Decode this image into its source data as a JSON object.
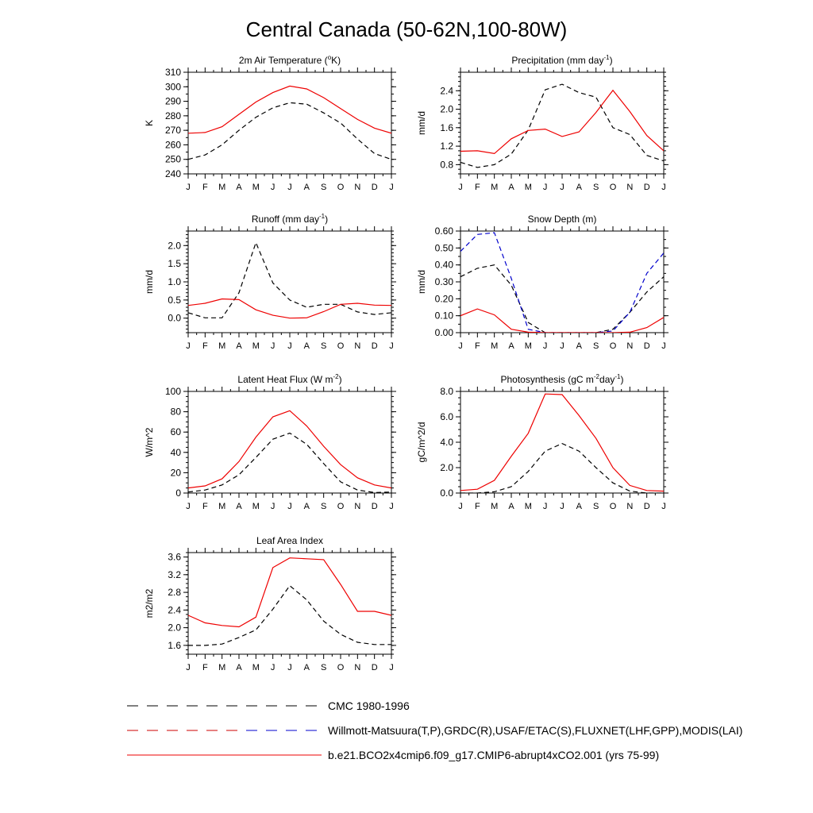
{
  "figure_title": "Central Canada (50-62N,100-80W)",
  "months": [
    "J",
    "F",
    "M",
    "A",
    "M",
    "J",
    "J",
    "A",
    "S",
    "O",
    "N",
    "D",
    "J"
  ],
  "legend": [
    {
      "label": "CMC 1980-1996",
      "color": "#000000",
      "dash": true
    },
    {
      "label": "Willmott-Matsuura(T,P),GRDC(R),USAF/ETAC(S),FLUXNET(LHF,GPP),MODIS(LAI)",
      "color": "#cc0000",
      "color2": "#0000cc",
      "dash": true
    },
    {
      "label": "b.e21.BCO2x4cmip6.f09_g17.CMIP6-abrupt4xCO2.001 (yrs 75-99)",
      "color": "#ee0000",
      "dash": false
    }
  ],
  "chart_data": [
    {
      "type": "line",
      "title_parts": [
        {
          "t": "2m Air Temperature ("
        },
        {
          "t": "o",
          "sup": true
        },
        {
          "t": "K)"
        }
      ],
      "ylabel": "K",
      "ylim": [
        240,
        310
      ],
      "yticks": [
        240,
        250,
        260,
        270,
        280,
        290,
        300,
        310
      ],
      "yticklabels": [
        "240",
        "250",
        "260",
        "270",
        "280",
        "290",
        "300",
        "310"
      ],
      "yminor": 5,
      "series": [
        {
          "name": "CMC 1980-1996",
          "color": "#000000",
          "dash": true,
          "values": [
            250,
            253,
            260,
            270,
            279,
            285.5,
            289,
            288,
            282,
            275,
            264,
            254,
            250
          ]
        },
        {
          "name": "b.e21 abrupt4xCO2",
          "color": "#ee0000",
          "dash": false,
          "values": [
            268,
            268.5,
            272.5,
            281,
            289.5,
            296,
            300.5,
            298.5,
            292.5,
            285,
            277.5,
            271.5,
            268
          ]
        }
      ]
    },
    {
      "type": "line",
      "title_parts": [
        {
          "t": "Precipitation (mm day"
        },
        {
          "t": "-1",
          "sup": true
        },
        {
          "t": ")"
        }
      ],
      "ylabel": "mm/d",
      "ylim": [
        0.6,
        2.8
      ],
      "yticks": [
        0.8,
        1.2,
        1.6,
        2.0,
        2.4
      ],
      "yticklabels": [
        "0.8",
        "1.2",
        "1.6",
        "2.0",
        "2.4"
      ],
      "yminor": 0.1,
      "series": [
        {
          "name": "Willmott-Matsuura",
          "color": "#000000",
          "dash": true,
          "values": [
            0.85,
            0.74,
            0.8,
            1.03,
            1.55,
            2.42,
            2.54,
            2.36,
            2.26,
            1.6,
            1.45,
            1.0,
            0.88
          ]
        },
        {
          "name": "b.e21 abrupt4xCO2",
          "color": "#ee0000",
          "dash": false,
          "values": [
            1.09,
            1.1,
            1.04,
            1.36,
            1.54,
            1.57,
            1.41,
            1.51,
            1.93,
            2.41,
            1.95,
            1.43,
            1.1
          ]
        }
      ]
    },
    {
      "type": "line",
      "title_parts": [
        {
          "t": "Runoff (mm day"
        },
        {
          "t": "-1",
          "sup": true
        },
        {
          "t": ")"
        }
      ],
      "ylabel": "mm/d",
      "ylim": [
        -0.4,
        2.4
      ],
      "yticks": [
        0.0,
        0.5,
        1.0,
        1.5,
        2.0
      ],
      "yticklabels": [
        "0.0",
        "0.5",
        "1.0",
        "1.5",
        "2.0"
      ],
      "yminor": 0.1,
      "series": [
        {
          "name": "GRDC",
          "color": "#000000",
          "dash": true,
          "values": [
            0.15,
            0.01,
            0.01,
            0.7,
            2.08,
            0.97,
            0.5,
            0.3,
            0.38,
            0.38,
            0.17,
            0.1,
            0.15
          ]
        },
        {
          "name": "b.e21 abrupt4xCO2",
          "color": "#ee0000",
          "dash": false,
          "values": [
            0.35,
            0.41,
            0.53,
            0.51,
            0.23,
            0.08,
            0.0,
            0.01,
            0.18,
            0.38,
            0.41,
            0.36,
            0.35
          ]
        }
      ]
    },
    {
      "type": "line",
      "title_parts": [
        {
          "t": "Snow Depth (m)"
        }
      ],
      "ylabel": "mm/d",
      "ylim": [
        0.0,
        0.6
      ],
      "yticks": [
        0.0,
        0.1,
        0.2,
        0.3,
        0.4,
        0.5,
        0.6
      ],
      "yticklabels": [
        "0.00",
        "0.10",
        "0.20",
        "0.30",
        "0.40",
        "0.50",
        "0.60"
      ],
      "yminor": 0.05,
      "series": [
        {
          "name": "CMC 1980-1996",
          "color": "#000000",
          "dash": true,
          "values": [
            0.33,
            0.38,
            0.4,
            0.28,
            0.06,
            0.0,
            0.0,
            0.0,
            0.0,
            0.02,
            0.12,
            0.24,
            0.33
          ]
        },
        {
          "name": "USAF/ETAC",
          "color": "#0000cc",
          "dash": true,
          "values": [
            0.48,
            0.58,
            0.59,
            0.32,
            0.02,
            0.0,
            0.0,
            0.0,
            0.0,
            0.01,
            0.12,
            0.35,
            0.47
          ]
        },
        {
          "name": "b.e21 abrupt4xCO2",
          "color": "#ee0000",
          "dash": false,
          "values": [
            0.1,
            0.14,
            0.105,
            0.02,
            0.003,
            0.0,
            0.0,
            0.0,
            0.0,
            0.0,
            0.003,
            0.03,
            0.09
          ]
        }
      ]
    },
    {
      "type": "line",
      "title_parts": [
        {
          "t": "Latent Heat Flux (W m"
        },
        {
          "t": "-2",
          "sup": true
        },
        {
          "t": ")"
        }
      ],
      "ylabel": "W/m^2",
      "ylim": [
        0,
        100
      ],
      "yticks": [
        0,
        20,
        40,
        60,
        80,
        100
      ],
      "yticklabels": [
        "0",
        "20",
        "40",
        "60",
        "80",
        "100"
      ],
      "yminor": 5,
      "series": [
        {
          "name": "FLUXNET",
          "color": "#000000",
          "dash": true,
          "values": [
            1,
            3,
            8,
            18,
            35,
            53,
            59,
            48,
            29,
            11,
            3,
            0.5,
            1
          ]
        },
        {
          "name": "b.e21 abrupt4xCO2",
          "color": "#ee0000",
          "dash": false,
          "values": [
            5,
            7,
            14,
            31,
            55,
            75,
            81,
            66,
            46,
            28,
            15,
            8,
            5
          ]
        }
      ]
    },
    {
      "type": "line",
      "title_parts": [
        {
          "t": "Photosynthesis (gC m"
        },
        {
          "t": "-2",
          "sup": true
        },
        {
          "t": "day"
        },
        {
          "t": "-1",
          "sup": true
        },
        {
          "t": ")"
        }
      ],
      "ylabel": "gC/m^2/d",
      "ylim": [
        0,
        8
      ],
      "yticks": [
        0,
        2,
        4,
        6,
        8
      ],
      "yticklabels": [
        "0.0",
        "2.0",
        "4.0",
        "6.0",
        "8.0"
      ],
      "yminor": 0.5,
      "series": [
        {
          "name": "FLUXNET",
          "color": "#000000",
          "dash": true,
          "values": [
            0.0,
            0.0,
            0.1,
            0.5,
            1.7,
            3.3,
            3.9,
            3.3,
            2.0,
            0.8,
            0.15,
            0.0,
            0.0
          ]
        },
        {
          "name": "b.e21 abrupt4xCO2",
          "color": "#ee0000",
          "dash": false,
          "values": [
            0.2,
            0.3,
            1.0,
            2.9,
            4.7,
            7.8,
            7.75,
            6.1,
            4.3,
            2.0,
            0.6,
            0.2,
            0.15
          ]
        }
      ]
    },
    {
      "type": "line",
      "title_parts": [
        {
          "t": "Leaf Area Index"
        }
      ],
      "ylabel": "m2/m2",
      "ylim": [
        1.4,
        3.7
      ],
      "yticks": [
        1.6,
        2.0,
        2.4,
        2.8,
        3.2,
        3.6
      ],
      "yticklabels": [
        "1.6",
        "2.0",
        "2.4",
        "2.8",
        "3.2",
        "3.6"
      ],
      "yminor": 0.1,
      "series": [
        {
          "name": "MODIS",
          "color": "#000000",
          "dash": true,
          "values": [
            1.6,
            1.6,
            1.63,
            1.78,
            1.95,
            2.42,
            2.95,
            2.63,
            2.15,
            1.85,
            1.67,
            1.62,
            1.62
          ]
        },
        {
          "name": "b.e21 abrupt4xCO2",
          "color": "#ee0000",
          "dash": false,
          "values": [
            2.28,
            2.11,
            2.05,
            2.02,
            2.24,
            3.36,
            3.58,
            3.56,
            3.54,
            2.98,
            2.37,
            2.37,
            2.28
          ]
        }
      ]
    }
  ]
}
